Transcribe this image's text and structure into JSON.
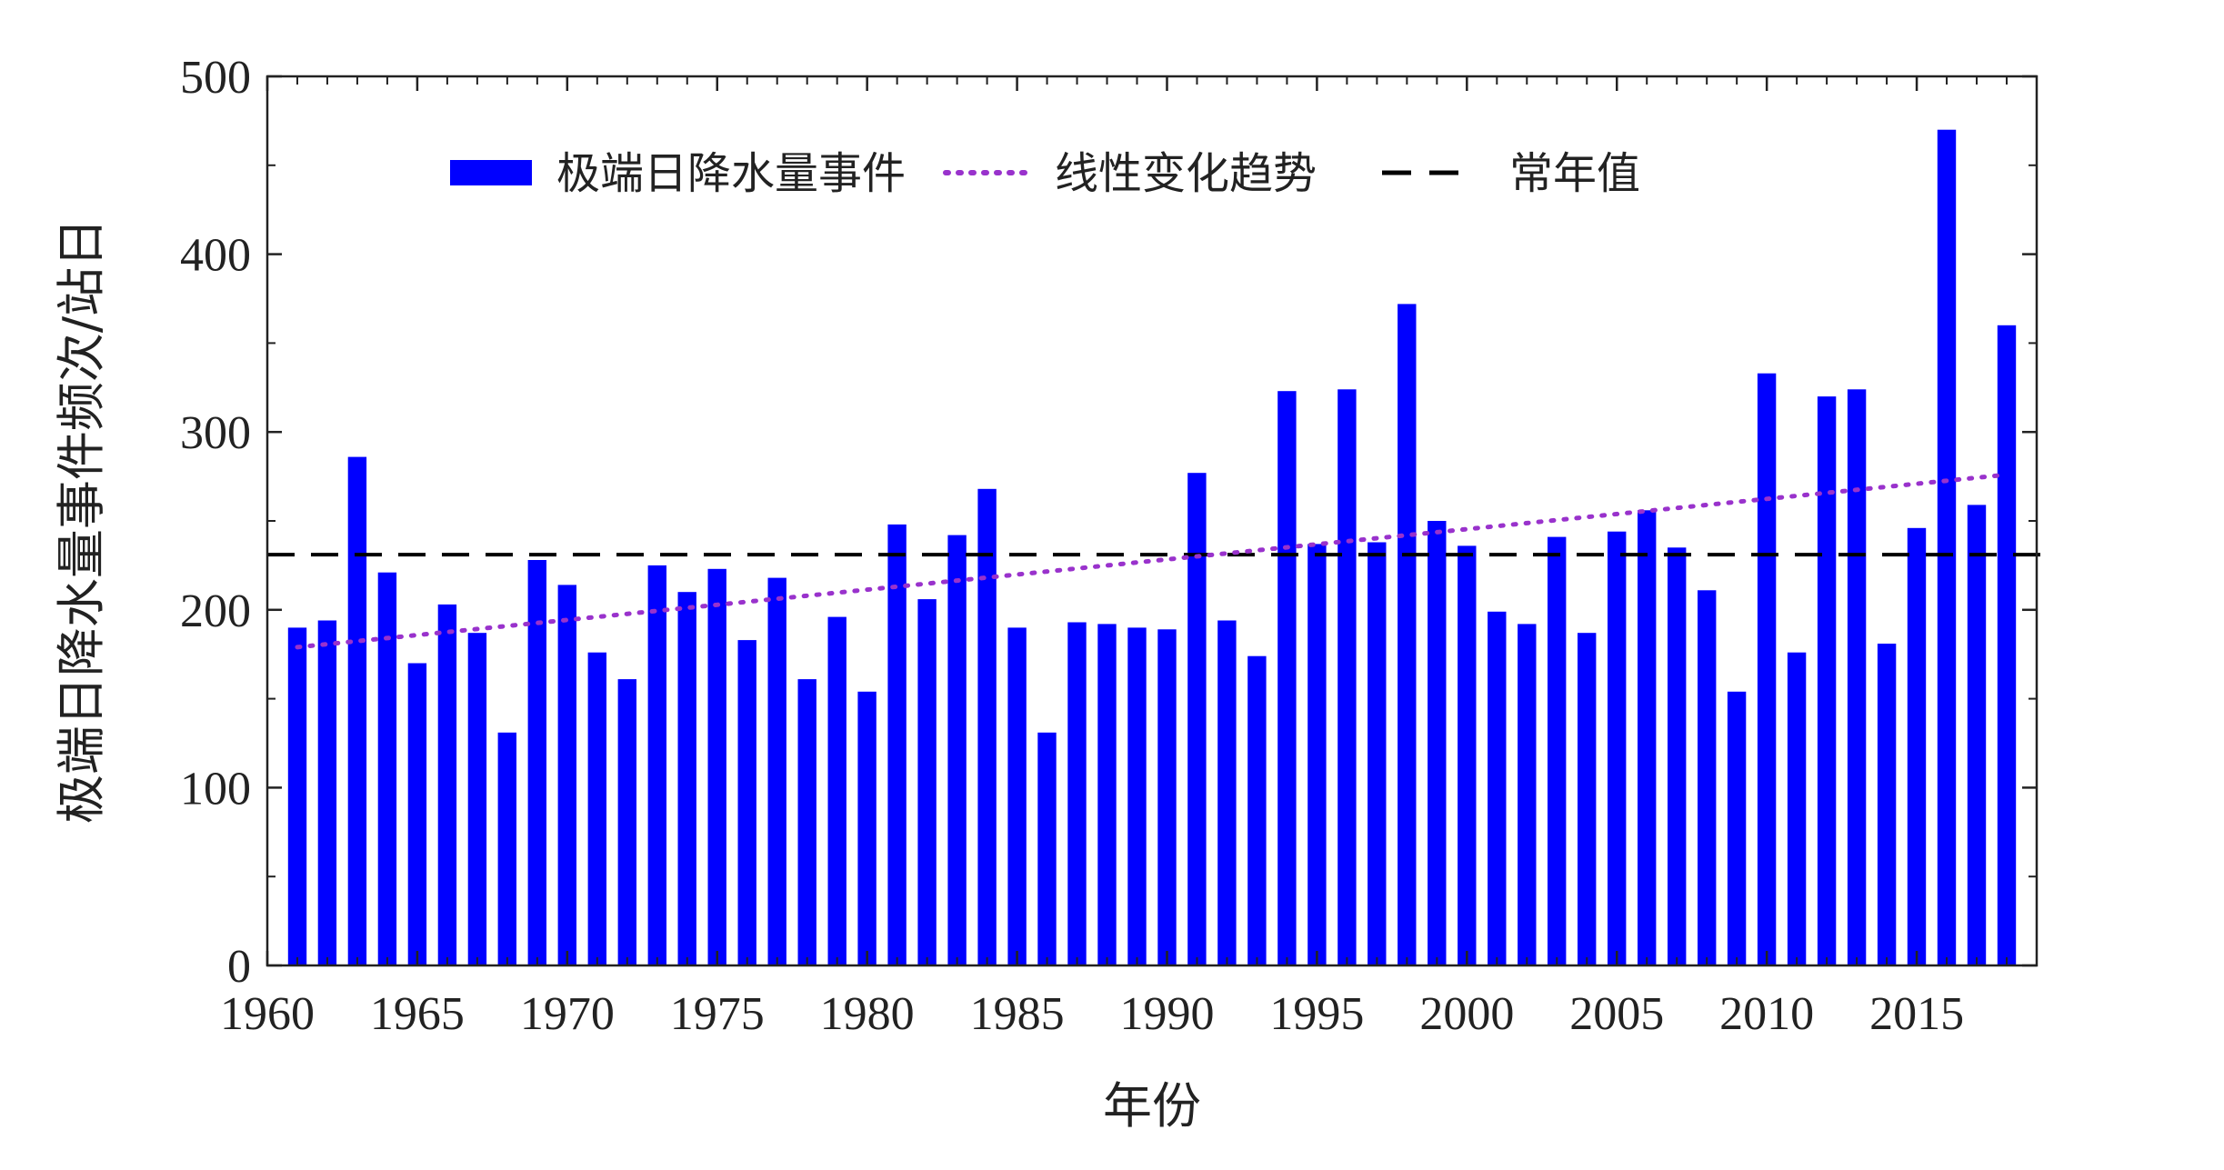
{
  "chart_data": {
    "type": "bar",
    "xlabel": "年份",
    "ylabel": "极端日降水量事件频次/站日",
    "xlim": [
      1960,
      2019
    ],
    "ylim": [
      0,
      500
    ],
    "x_ticks": [
      1960,
      1965,
      1970,
      1975,
      1980,
      1985,
      1990,
      1995,
      2000,
      2005,
      2010,
      2015
    ],
    "y_ticks": [
      0,
      100,
      200,
      300,
      400,
      500
    ],
    "legend_position": "top",
    "categories": [
      1961,
      1962,
      1963,
      1964,
      1965,
      1966,
      1967,
      1968,
      1969,
      1970,
      1971,
      1972,
      1973,
      1974,
      1975,
      1976,
      1977,
      1978,
      1979,
      1980,
      1981,
      1982,
      1983,
      1984,
      1985,
      1986,
      1987,
      1988,
      1989,
      1990,
      1991,
      1992,
      1993,
      1994,
      1995,
      1996,
      1997,
      1998,
      1999,
      2000,
      2001,
      2002,
      2003,
      2004,
      2005,
      2006,
      2007,
      2008,
      2009,
      2010,
      2011,
      2012,
      2013,
      2014,
      2015,
      2016,
      2017,
      2018
    ],
    "series": [
      {
        "name": "极端日降水量事件",
        "kind": "bar",
        "color": "#0000ff",
        "values": [
          190,
          194,
          286,
          221,
          170,
          203,
          187,
          131,
          228,
          214,
          176,
          161,
          225,
          210,
          223,
          183,
          218,
          161,
          196,
          154,
          248,
          206,
          242,
          268,
          190,
          131,
          193,
          192,
          190,
          189,
          277,
          194,
          174,
          323,
          237,
          324,
          238,
          372,
          250,
          236,
          199,
          192,
          241,
          187,
          244,
          256,
          235,
          211,
          154,
          333,
          176,
          320,
          324,
          181,
          246,
          470,
          259,
          360
        ]
      },
      {
        "name": "线性变化趋势",
        "kind": "line",
        "style": "dotted",
        "color": "#9932cc",
        "x": [
          1961,
          2018
        ],
        "values": [
          179,
          276
        ]
      },
      {
        "name": "常年值",
        "kind": "line",
        "style": "dashed",
        "color": "#000000",
        "value": 231
      }
    ]
  }
}
